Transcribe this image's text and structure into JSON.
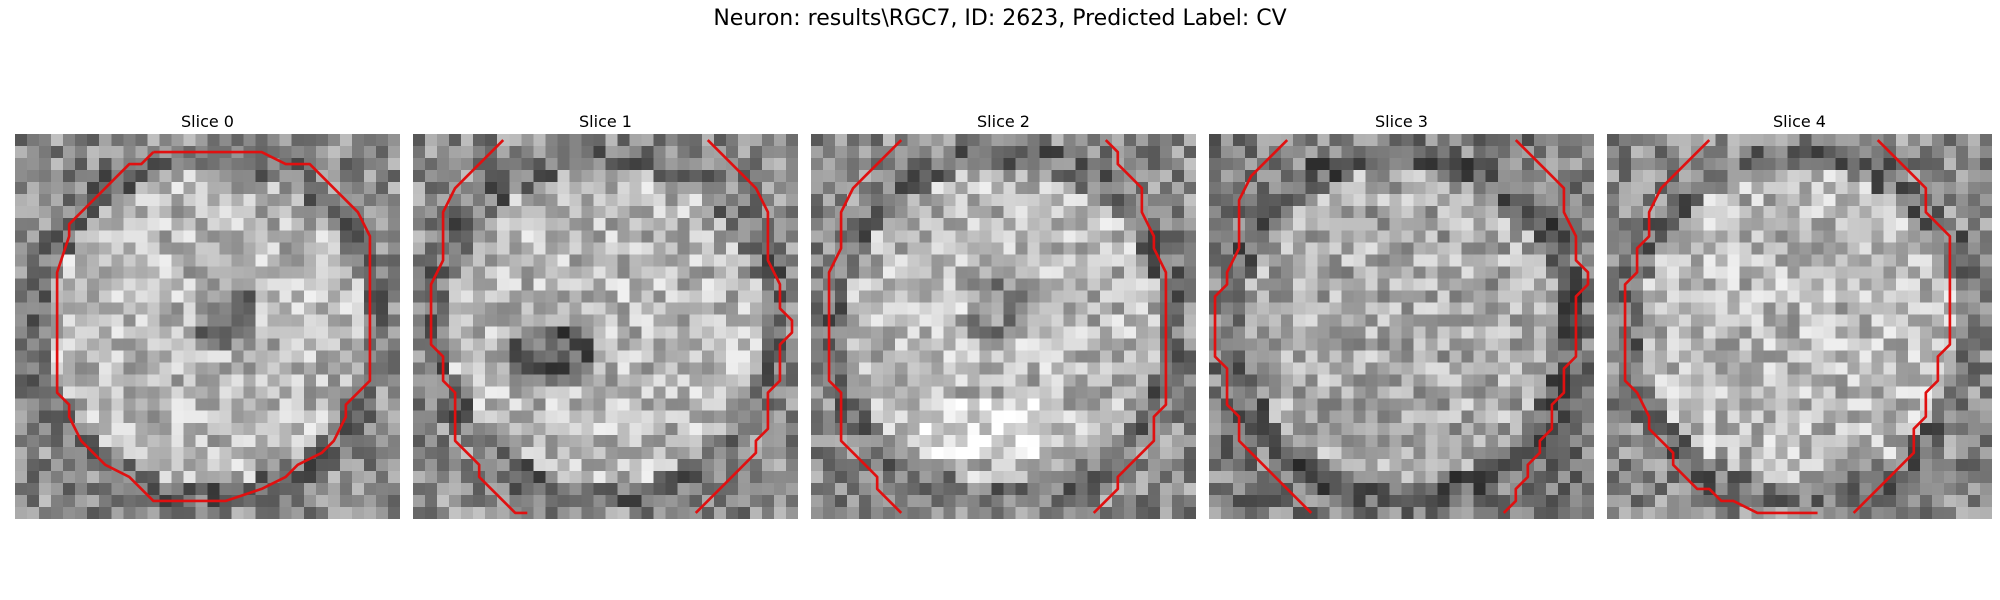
{
  "figure": {
    "title": "Neuron: results\\RGC7, ID: 2623, Predicted Label: CV",
    "contour_color": "#e01010"
  },
  "chart_data": {
    "type": "heatmap",
    "colormap": "gray",
    "grid": [
      32,
      32
    ],
    "slices": [
      {
        "title": "Slice 0",
        "contour": [
          [
            11,
            1
          ],
          [
            20,
            1
          ],
          [
            22,
            2
          ],
          [
            24,
            2
          ],
          [
            26,
            4
          ],
          [
            27,
            5
          ],
          [
            28,
            6
          ],
          [
            29,
            8
          ],
          [
            29,
            9
          ],
          [
            29,
            17
          ],
          [
            29,
            20
          ],
          [
            28,
            21
          ],
          [
            27,
            22
          ],
          [
            27,
            23
          ],
          [
            26,
            25
          ],
          [
            25,
            26
          ],
          [
            23,
            27
          ],
          [
            22,
            28
          ],
          [
            20,
            29
          ],
          [
            17,
            30
          ],
          [
            14,
            30
          ],
          [
            11,
            30
          ],
          [
            10,
            29
          ],
          [
            9,
            28
          ],
          [
            7,
            27
          ],
          [
            6,
            26
          ],
          [
            5,
            25
          ],
          [
            4,
            23
          ],
          [
            4,
            22
          ],
          [
            3,
            21
          ],
          [
            3,
            20
          ],
          [
            3,
            17
          ],
          [
            3,
            11
          ],
          [
            4,
            8
          ],
          [
            4,
            7
          ],
          [
            5,
            6
          ],
          [
            6,
            5
          ],
          [
            7,
            4
          ],
          [
            8,
            3
          ],
          [
            9,
            2
          ],
          [
            10,
            2
          ],
          [
            11,
            1
          ]
        ]
      },
      {
        "title": "Slice 1",
        "contour": [
          [
            7,
            0
          ],
          [
            6,
            1
          ],
          [
            5,
            2
          ],
          [
            4,
            3
          ],
          [
            3,
            4
          ],
          [
            2,
            6
          ],
          [
            2,
            8
          ],
          [
            2,
            10
          ],
          [
            1,
            12
          ],
          [
            1,
            15
          ],
          [
            1,
            16
          ],
          [
            1,
            17
          ],
          [
            2,
            18
          ],
          [
            2,
            20
          ],
          [
            3,
            21
          ],
          [
            3,
            22
          ],
          [
            3,
            23
          ],
          [
            3,
            24
          ],
          [
            3,
            25
          ],
          [
            4,
            26
          ],
          [
            5,
            27
          ],
          [
            5,
            28
          ],
          [
            6,
            29
          ],
          [
            7,
            30
          ],
          [
            8,
            31
          ],
          [
            9,
            31
          ]
        ],
        "contour2": [
          [
            24,
            0
          ],
          [
            25,
            1
          ],
          [
            26,
            2
          ],
          [
            27,
            3
          ],
          [
            28,
            4
          ],
          [
            29,
            6
          ],
          [
            29,
            8
          ],
          [
            29,
            10
          ],
          [
            30,
            12
          ],
          [
            30,
            14
          ],
          [
            31,
            15
          ],
          [
            31,
            16
          ],
          [
            30,
            17
          ],
          [
            30,
            18
          ],
          [
            30,
            20
          ],
          [
            29,
            21
          ],
          [
            29,
            22
          ],
          [
            29,
            23
          ],
          [
            29,
            24
          ],
          [
            28,
            25
          ],
          [
            28,
            26
          ],
          [
            27,
            27
          ],
          [
            26,
            28
          ],
          [
            25,
            29
          ],
          [
            24,
            30
          ],
          [
            23,
            31
          ]
        ]
      },
      {
        "title": "Slice 2",
        "contour": [
          [
            7,
            0
          ],
          [
            6,
            1
          ],
          [
            5,
            2
          ],
          [
            4,
            3
          ],
          [
            3,
            4
          ],
          [
            2,
            6
          ],
          [
            2,
            8
          ],
          [
            2,
            9
          ],
          [
            1,
            11
          ],
          [
            1,
            12
          ],
          [
            1,
            13
          ],
          [
            1,
            14
          ],
          [
            1,
            16
          ],
          [
            1,
            17
          ],
          [
            1,
            18
          ],
          [
            1,
            19
          ],
          [
            1,
            20
          ],
          [
            2,
            21
          ],
          [
            2,
            22
          ],
          [
            2,
            23
          ],
          [
            2,
            24
          ],
          [
            2,
            25
          ],
          [
            3,
            26
          ],
          [
            4,
            27
          ],
          [
            5,
            28
          ],
          [
            5,
            29
          ],
          [
            6,
            30
          ],
          [
            7,
            31
          ]
        ],
        "contour2": [
          [
            24,
            0
          ],
          [
            25,
            1
          ],
          [
            25,
            2
          ],
          [
            26,
            3
          ],
          [
            27,
            4
          ],
          [
            27,
            6
          ],
          [
            28,
            8
          ],
          [
            28,
            9
          ],
          [
            29,
            11
          ],
          [
            29,
            12
          ],
          [
            29,
            13
          ],
          [
            29,
            14
          ],
          [
            29,
            16
          ],
          [
            29,
            17
          ],
          [
            29,
            18
          ],
          [
            29,
            19
          ],
          [
            29,
            20
          ],
          [
            29,
            21
          ],
          [
            29,
            22
          ],
          [
            28,
            23
          ],
          [
            28,
            24
          ],
          [
            28,
            25
          ],
          [
            27,
            26
          ],
          [
            26,
            27
          ],
          [
            25,
            28
          ],
          [
            25,
            29
          ],
          [
            24,
            30
          ],
          [
            23,
            31
          ]
        ]
      },
      {
        "title": "Slice 3",
        "contour": [
          [
            6,
            0
          ],
          [
            5,
            1
          ],
          [
            4,
            2
          ],
          [
            3,
            3
          ],
          [
            2,
            5
          ],
          [
            2,
            7
          ],
          [
            2,
            9
          ],
          [
            1,
            11
          ],
          [
            1,
            12
          ],
          [
            0,
            13
          ],
          [
            0,
            15
          ],
          [
            0,
            16
          ],
          [
            0,
            17
          ],
          [
            0,
            18
          ],
          [
            1,
            19
          ],
          [
            1,
            21
          ],
          [
            1,
            22
          ],
          [
            2,
            23
          ],
          [
            2,
            24
          ],
          [
            2,
            25
          ],
          [
            3,
            26
          ],
          [
            4,
            27
          ],
          [
            5,
            28
          ],
          [
            6,
            29
          ],
          [
            7,
            30
          ],
          [
            8,
            31
          ]
        ],
        "contour2": [
          [
            25,
            0
          ],
          [
            26,
            1
          ],
          [
            27,
            2
          ],
          [
            28,
            3
          ],
          [
            29,
            4
          ],
          [
            29,
            6
          ],
          [
            30,
            8
          ],
          [
            30,
            10
          ],
          [
            31,
            11
          ],
          [
            31,
            12
          ],
          [
            30,
            13
          ],
          [
            30,
            14
          ],
          [
            30,
            16
          ],
          [
            30,
            17
          ],
          [
            30,
            18
          ],
          [
            29,
            19
          ],
          [
            29,
            21
          ],
          [
            28,
            22
          ],
          [
            28,
            23
          ],
          [
            28,
            24
          ],
          [
            27,
            25
          ],
          [
            27,
            26
          ],
          [
            26,
            27
          ],
          [
            26,
            28
          ],
          [
            25,
            29
          ],
          [
            25,
            30
          ],
          [
            24,
            31
          ]
        ]
      },
      {
        "title": "Slice 4",
        "contour": [
          [
            8,
            0
          ],
          [
            7,
            1
          ],
          [
            6,
            2
          ],
          [
            5,
            3
          ],
          [
            4,
            4
          ],
          [
            3,
            6
          ],
          [
            3,
            8
          ],
          [
            2,
            9
          ],
          [
            2,
            11
          ],
          [
            1,
            12
          ],
          [
            1,
            13
          ],
          [
            1,
            15
          ],
          [
            1,
            17
          ],
          [
            1,
            19
          ],
          [
            1,
            20
          ],
          [
            2,
            21
          ],
          [
            3,
            23
          ],
          [
            3,
            24
          ],
          [
            4,
            25
          ],
          [
            5,
            26
          ],
          [
            5,
            27
          ],
          [
            6,
            28
          ],
          [
            7,
            29
          ],
          [
            8,
            29
          ],
          [
            9,
            30
          ],
          [
            10,
            30
          ],
          [
            12,
            31
          ],
          [
            16,
            31
          ],
          [
            17,
            31
          ]
        ],
        "contour2": [
          [
            22,
            0
          ],
          [
            23,
            1
          ],
          [
            24,
            2
          ],
          [
            25,
            3
          ],
          [
            26,
            4
          ],
          [
            26,
            6
          ],
          [
            27,
            7
          ],
          [
            28,
            8
          ],
          [
            28,
            10
          ],
          [
            28,
            13
          ],
          [
            28,
            15
          ],
          [
            28,
            16
          ],
          [
            28,
            17
          ],
          [
            27,
            18
          ],
          [
            27,
            20
          ],
          [
            26,
            21
          ],
          [
            26,
            22
          ],
          [
            26,
            23
          ],
          [
            25,
            24
          ],
          [
            25,
            25
          ],
          [
            25,
            26
          ],
          [
            24,
            27
          ],
          [
            23,
            28
          ],
          [
            22,
            29
          ],
          [
            21,
            30
          ],
          [
            20,
            31
          ]
        ]
      }
    ]
  }
}
